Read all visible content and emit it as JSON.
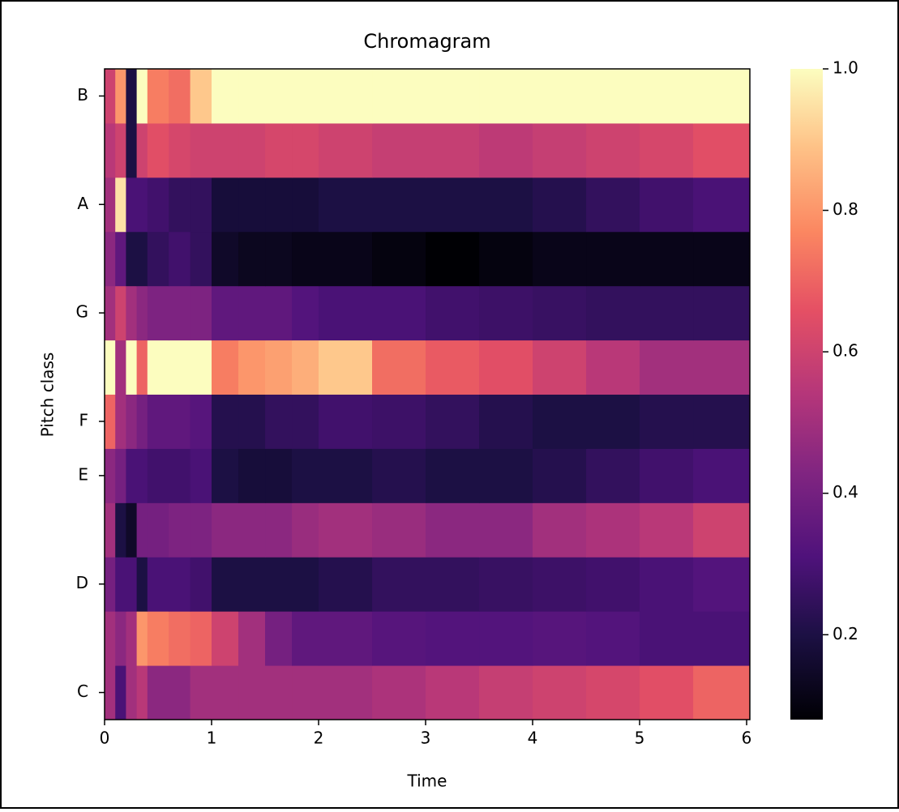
{
  "chart_data": {
    "type": "heatmap",
    "title": "Chromagram",
    "x_label": "Time",
    "y_label": "Pitch class",
    "categories": [
      "C",
      null,
      "D",
      null,
      "E",
      "F",
      null,
      "G",
      null,
      "A",
      null,
      "B"
    ],
    "bins": [
      0,
      0.1,
      0.2,
      0.3,
      0.4,
      0.6,
      0.8,
      1.0,
      1.25,
      1.5,
      1.75,
      2.0,
      2.5,
      3.0,
      3.5,
      4.0,
      4.5,
      5.0,
      5.5,
      6.03
    ],
    "values": [
      [
        0.5,
        0.3,
        0.5,
        0.55,
        0.45,
        0.45,
        0.5,
        0.5,
        0.5,
        0.5,
        0.5,
        0.5,
        0.52,
        0.55,
        0.58,
        0.6,
        0.62,
        0.65,
        0.7
      ],
      [
        0.5,
        0.45,
        0.5,
        0.8,
        0.75,
        0.72,
        0.7,
        0.6,
        0.5,
        0.4,
        0.35,
        0.35,
        0.33,
        0.32,
        0.32,
        0.33,
        0.32,
        0.3,
        0.3
      ],
      [
        0.4,
        0.3,
        0.3,
        0.2,
        0.3,
        0.3,
        0.28,
        0.2,
        0.2,
        0.2,
        0.2,
        0.22,
        0.25,
        0.25,
        0.26,
        0.27,
        0.28,
        0.3,
        0.32
      ],
      [
        0.5,
        0.2,
        0.15,
        0.4,
        0.4,
        0.42,
        0.42,
        0.45,
        0.45,
        0.45,
        0.48,
        0.5,
        0.48,
        0.45,
        0.45,
        0.5,
        0.52,
        0.55,
        0.6
      ],
      [
        0.45,
        0.4,
        0.3,
        0.3,
        0.28,
        0.28,
        0.3,
        0.2,
        0.18,
        0.18,
        0.2,
        0.2,
        0.22,
        0.2,
        0.2,
        0.22,
        0.25,
        0.28,
        0.3
      ],
      [
        0.7,
        0.5,
        0.45,
        0.4,
        0.35,
        0.35,
        0.33,
        0.22,
        0.22,
        0.25,
        0.25,
        0.28,
        0.27,
        0.25,
        0.22,
        0.2,
        0.2,
        0.22,
        0.22
      ],
      [
        1.0,
        0.5,
        1.0,
        0.7,
        1.0,
        1.0,
        1.0,
        0.75,
        0.8,
        0.82,
        0.85,
        0.9,
        0.72,
        0.68,
        0.65,
        0.6,
        0.55,
        0.5,
        0.5
      ],
      [
        0.5,
        0.6,
        0.5,
        0.45,
        0.42,
        0.42,
        0.42,
        0.35,
        0.35,
        0.35,
        0.32,
        0.3,
        0.3,
        0.28,
        0.27,
        0.26,
        0.25,
        0.25,
        0.25
      ],
      [
        0.45,
        0.35,
        0.2,
        0.2,
        0.25,
        0.28,
        0.25,
        0.15,
        0.13,
        0.13,
        0.12,
        0.12,
        0.1,
        0.08,
        0.1,
        0.12,
        0.12,
        0.12,
        0.12
      ],
      [
        0.5,
        0.95,
        0.3,
        0.3,
        0.28,
        0.25,
        0.25,
        0.18,
        0.18,
        0.18,
        0.18,
        0.2,
        0.2,
        0.2,
        0.2,
        0.22,
        0.25,
        0.28,
        0.3
      ],
      [
        0.55,
        0.6,
        0.2,
        0.6,
        0.65,
        0.62,
        0.6,
        0.6,
        0.6,
        0.62,
        0.62,
        0.6,
        0.58,
        0.58,
        0.56,
        0.58,
        0.6,
        0.62,
        0.65
      ],
      [
        0.6,
        0.8,
        0.2,
        1.0,
        0.75,
        0.72,
        0.9,
        1.0,
        1.0,
        1.0,
        1.0,
        1.0,
        1.0,
        1.0,
        1.0,
        1.0,
        1.0,
        1.0,
        1.0
      ]
    ],
    "xlim": [
      0,
      6.03
    ],
    "xticks": [
      0,
      1,
      2,
      3,
      4,
      5,
      6
    ],
    "clim": [
      0.08,
      1
    ],
    "cticks": [
      0.2,
      0.4,
      0.6,
      0.8,
      {
        "value": 1,
        "label": "1.0"
      }
    ],
    "colormap": "magma"
  }
}
